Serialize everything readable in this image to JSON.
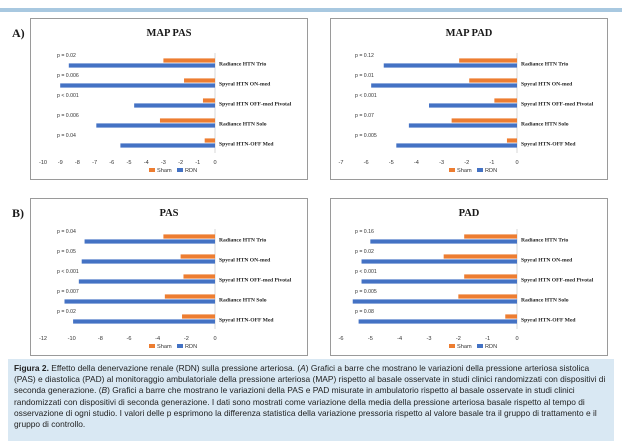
{
  "sections": {
    "a": "A)",
    "b": "B)"
  },
  "charts": [
    {
      "id": "map-pas",
      "title": "MAP PAS",
      "type": "bar",
      "categories": [
        "Radiance HTN Trio",
        "Spyral HTN ON-med",
        "Spyral HTN OFF-med Pivotal",
        "Radiance HTN Solo",
        "Spyral HTN-OFF Med"
      ],
      "pvalues": [
        "p = 0.02",
        "p = 0.006",
        "p < 0.001",
        "p = 0.006",
        "p = 0.04"
      ],
      "series": [
        {
          "name": "Sham",
          "color": "#ed7d31",
          "values": [
            -3.0,
            -1.8,
            -0.7,
            -3.2,
            -0.6
          ]
        },
        {
          "name": "RDN",
          "color": "#4472c4",
          "values": [
            -8.5,
            -9.0,
            -4.7,
            -6.9,
            -5.5
          ]
        }
      ],
      "xlim": [
        -10,
        0
      ],
      "ticks": [
        "-10",
        "-9",
        "-8",
        "-7",
        "-6",
        "-5",
        "-4",
        "-3",
        "-2",
        "-1",
        "0"
      ],
      "legend": [
        "Sham",
        "RDN"
      ]
    },
    {
      "id": "map-pad",
      "title": "MAP PAD",
      "type": "bar",
      "categories": [
        "Radiance HTN Trio",
        "Spyral HTN ON-med",
        "Spyral HTN OFF-med Pivotal",
        "Radiance HTN Solo",
        "Spyral HTN-OFF Med"
      ],
      "pvalues": [
        "p = 0.12",
        "p = 0.01",
        "p < 0.001",
        "p = 0.07",
        "p = 0.005"
      ],
      "series": [
        {
          "name": "Sham",
          "color": "#ed7d31",
          "values": [
            -2.3,
            -1.9,
            -0.9,
            -2.6,
            -0.4
          ]
        },
        {
          "name": "RDN",
          "color": "#4472c4",
          "values": [
            -5.3,
            -5.8,
            -3.5,
            -4.3,
            -4.8
          ]
        }
      ],
      "xlim": [
        -7,
        0
      ],
      "ticks": [
        "-7",
        "-6",
        "-5",
        "-4",
        "-3",
        "-2",
        "-1",
        "0"
      ],
      "legend": [
        "Sham",
        "RDN"
      ]
    },
    {
      "id": "pas",
      "title": "PAS",
      "type": "bar",
      "categories": [
        "Radiance HTN Trio",
        "Spyral HTN ON-med",
        "Spyral HTN OFF-med Pivotal",
        "Radiance HTN Solo",
        "Spyral HTN-OFF Med"
      ],
      "pvalues": [
        "p = 0.04",
        "p = 0.05",
        "p < 0.001",
        "p = 0.007",
        "p = 0.02"
      ],
      "series": [
        {
          "name": "Sham",
          "color": "#ed7d31",
          "values": [
            -3.6,
            -2.4,
            -2.2,
            -3.5,
            -2.3
          ]
        },
        {
          "name": "RDN",
          "color": "#4472c4",
          "values": [
            -9.1,
            -9.3,
            -9.5,
            -10.5,
            -9.9
          ]
        }
      ],
      "xlim": [
        -12,
        0
      ],
      "ticks": [
        "-12",
        "-10",
        "-8",
        "-6",
        "-4",
        "-2",
        "0"
      ],
      "legend": [
        "Sham",
        "RDN"
      ]
    },
    {
      "id": "pad",
      "title": "PAD",
      "type": "bar",
      "categories": [
        "Radiance HTN Trio",
        "Spyral HTN ON-med",
        "Spyral HTN OFF-med Pivotal",
        "Radiance HTN Solo",
        "Spyral HTN-OFF Med"
      ],
      "pvalues": [
        "p = 0.16",
        "p = 0.02",
        "p < 0.001",
        "p = 0.005",
        "p = 0.08"
      ],
      "series": [
        {
          "name": "Sham",
          "color": "#ed7d31",
          "values": [
            -1.8,
            -2.5,
            -1.8,
            -2.0,
            -0.4
          ]
        },
        {
          "name": "RDN",
          "color": "#4472c4",
          "values": [
            -5.0,
            -5.3,
            -5.3,
            -5.6,
            -5.4
          ]
        }
      ],
      "xlim": [
        -6,
        0
      ],
      "ticks": [
        "-6",
        "-5",
        "-4",
        "-3",
        "-2",
        "-1",
        "0"
      ],
      "legend": [
        "Sham",
        "RDN"
      ]
    }
  ],
  "caption": {
    "label": "Figura 2.",
    "t1": " Effetto della denervazione renale (RDN) sulla pressione arteriosa. (",
    "a": "A",
    "t2": ") Grafici a barre che mostrano le variazioni della pressione arteriosa sistolica (PAS) e diastolica (PAD) al monitoraggio ambulatoriale della pressione arteriosa (MAP) rispetto al basale osservate in studi clinici randomizzati con dispositivi di seconda generazione. (",
    "b": "B",
    "t3": ") Grafici a barre che mostrano le variazioni della PAS e PAD misurate in ambulatorio rispetto al basale osservate in studi clinici randomizzati con dispositivi di seconda generazione. I dati sono mostrati come variazione della media della pressione arteriosa basale rispetto al tempo di osservazione di ogni studio. I valori delle p esprimono la differenza statistica della variazione pressoria rispetto al valore basale tra il gruppo di trattamento e il gruppo di controllo."
  }
}
